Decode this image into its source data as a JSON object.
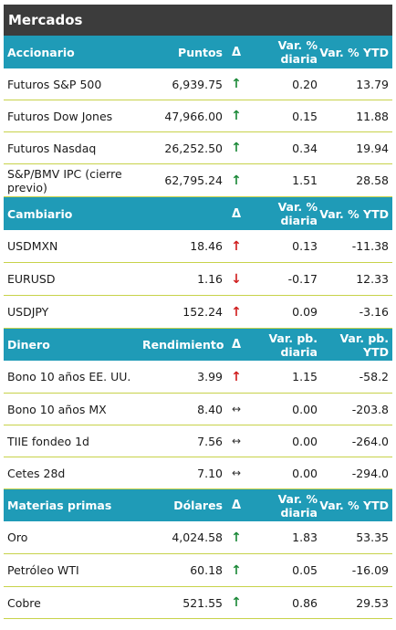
{
  "title": "Mercados",
  "sections": [
    {
      "key": "accionario",
      "headers": {
        "name": "Accionario",
        "val": "Puntos",
        "arrow": "Δ",
        "var": "Var. % diaria",
        "ytd": "Var. % YTD"
      },
      "rows": [
        {
          "name": "Futuros S&P 500",
          "val": "6,939.75",
          "arrow": "↑",
          "dir": "up",
          "var": "0.20",
          "ytd": "13.79"
        },
        {
          "name": "Futuros Dow Jones",
          "val": "47,966.00",
          "arrow": "↑",
          "dir": "up",
          "var": "0.15",
          "ytd": "11.88"
        },
        {
          "name": "Futuros Nasdaq",
          "val": "26,252.50",
          "arrow": "↑",
          "dir": "up",
          "var": "0.34",
          "ytd": "19.94"
        },
        {
          "name": "S&P/BMV IPC (cierre previo)",
          "val": "62,795.24",
          "arrow": "↑",
          "dir": "up",
          "var": "1.51",
          "ytd": "28.58"
        }
      ]
    },
    {
      "key": "cambiario",
      "headers": {
        "name": "Cambiario",
        "val": "",
        "arrow": "Δ",
        "var": "Var. % diaria",
        "ytd": "Var. % YTD"
      },
      "rows": [
        {
          "name": "USDMXN",
          "val": "18.46",
          "arrow": "↑",
          "dir": "red-up",
          "var": "0.13",
          "ytd": "-11.38"
        },
        {
          "name": "EURUSD",
          "val": "1.16",
          "arrow": "↓",
          "dir": "down",
          "var": "-0.17",
          "ytd": "12.33"
        },
        {
          "name": "USDJPY",
          "val": "152.24",
          "arrow": "↑",
          "dir": "red-up",
          "var": "0.09",
          "ytd": "-3.16"
        }
      ]
    },
    {
      "key": "dinero",
      "headers": {
        "name": "Dinero",
        "val": "Rendimiento",
        "arrow": "Δ",
        "var": "Var. pb. diaria",
        "ytd": "Var. pb. YTD"
      },
      "rows": [
        {
          "name": "Bono 10 años EE. UU.",
          "val": "3.99",
          "arrow": "↑",
          "dir": "red-up",
          "var": "1.15",
          "ytd": "-58.2"
        },
        {
          "name": "Bono 10 años MX",
          "val": "8.40",
          "arrow": "↔",
          "dir": "flat",
          "var": "0.00",
          "ytd": "-203.8"
        },
        {
          "name": "TIIE fondeo 1d",
          "val": "7.56",
          "arrow": "↔",
          "dir": "flat",
          "var": "0.00",
          "ytd": "-264.0"
        },
        {
          "name": "Cetes 28d",
          "val": "7.10",
          "arrow": "↔",
          "dir": "flat",
          "var": "0.00",
          "ytd": "-294.0"
        }
      ]
    },
    {
      "key": "materias-primas",
      "headers": {
        "name": "Materias primas",
        "val": "Dólares",
        "arrow": "Δ",
        "var": "Var. % diaria",
        "ytd": "Var. % YTD"
      },
      "rows": [
        {
          "name": "Oro",
          "val": "4,024.58",
          "arrow": "↑",
          "dir": "up",
          "var": "1.83",
          "ytd": "53.35"
        },
        {
          "name": "Petróleo WTI",
          "val": "60.18",
          "arrow": "↑",
          "dir": "up",
          "var": "0.05",
          "ytd": "-16.09"
        },
        {
          "name": "Cobre",
          "val": "521.55",
          "arrow": "↑",
          "dir": "up",
          "var": "0.86",
          "ytd": "29.53"
        }
      ]
    }
  ]
}
